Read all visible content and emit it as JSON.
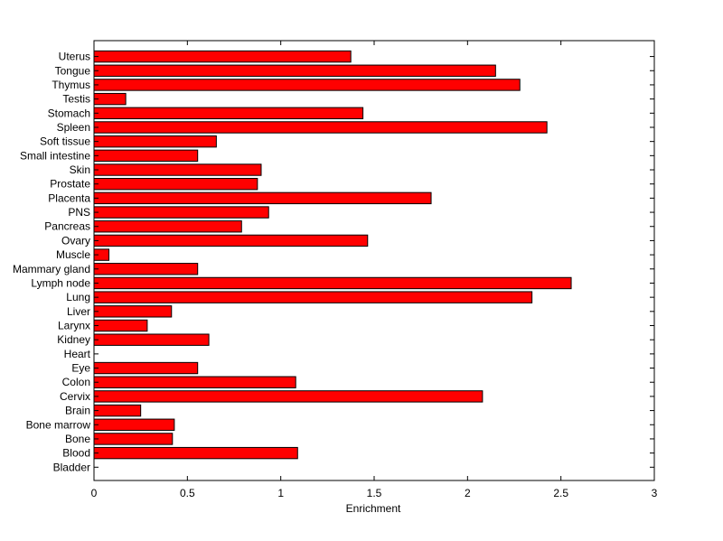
{
  "chart_data": {
    "type": "bar",
    "orientation": "horizontal",
    "xlabel": "Enrichment",
    "ylabel": "",
    "xlim": [
      0,
      3
    ],
    "xticks": [
      0,
      0.5,
      1,
      1.5,
      2,
      2.5,
      3
    ],
    "xtick_labels": [
      "0",
      "0.5",
      "1",
      "1.5",
      "2",
      "2.5",
      "3"
    ],
    "grid": false,
    "bar_color": "#ff0000",
    "bar_edge_color": "#000000",
    "categories": [
      "Bladder",
      "Blood",
      "Bone",
      "Bone marrow",
      "Brain",
      "Cervix",
      "Colon",
      "Eye",
      "Heart",
      "Kidney",
      "Larynx",
      "Liver",
      "Lung",
      "Lymph node",
      "Mammary gland",
      "Muscle",
      "Ovary",
      "Pancreas",
      "PNS",
      "Placenta",
      "Prostate",
      "Skin",
      "Small intestine",
      "Soft tissue",
      "Spleen",
      "Stomach",
      "Testis",
      "Thymus",
      "Tongue",
      "Uterus"
    ],
    "values": [
      0,
      1.09,
      0.42,
      0.43,
      0.25,
      2.08,
      1.08,
      0.555,
      0,
      0.615,
      0.285,
      0.415,
      2.345,
      2.555,
      0.555,
      0.08,
      1.465,
      0.79,
      0.935,
      1.805,
      0.875,
      0.895,
      0.555,
      0.655,
      2.425,
      1.44,
      0.17,
      2.28,
      2.15,
      1.375
    ]
  }
}
